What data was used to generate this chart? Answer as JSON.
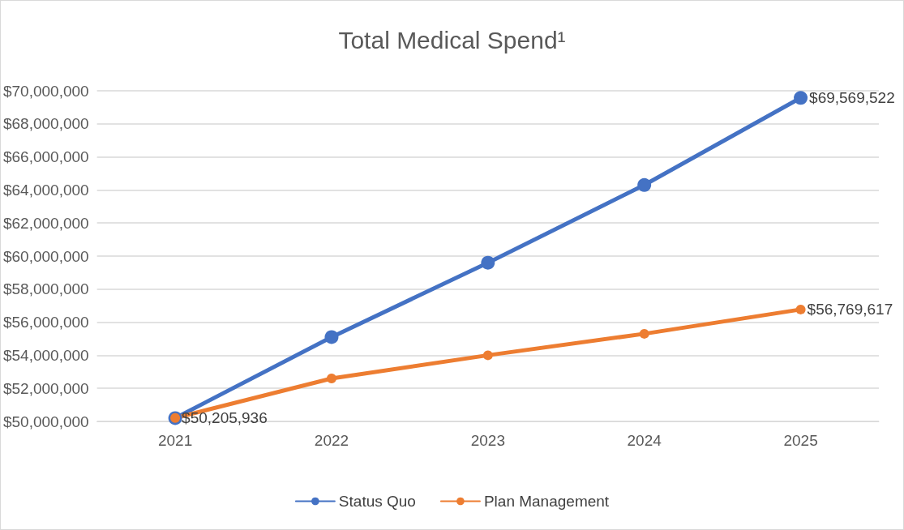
{
  "chart_data": {
    "type": "line",
    "title": "Total Medical Spend¹",
    "categories": [
      "2021",
      "2022",
      "2023",
      "2024",
      "2025"
    ],
    "series": [
      {
        "name": "Status Quo",
        "color": "#4472c4",
        "values": [
          50200000,
          55100000,
          59600000,
          64300000,
          69569522
        ],
        "value_labels": [
          null,
          null,
          null,
          null,
          "$69,569,522"
        ]
      },
      {
        "name": "Plan Management",
        "color": "#ed7d31",
        "values": [
          50205936,
          52600000,
          54000000,
          55300000,
          56769617
        ],
        "value_labels": [
          "$50,205,936",
          null,
          null,
          null,
          "$56,769,617"
        ]
      }
    ],
    "ylim": [
      50000000,
      70000000
    ],
    "yticks": [
      {
        "value": 50000000,
        "label": "$50,000,000"
      },
      {
        "value": 52000000,
        "label": "$52,000,000"
      },
      {
        "value": 54000000,
        "label": "$54,000,000"
      },
      {
        "value": 56000000,
        "label": "$56,000,000"
      },
      {
        "value": 58000000,
        "label": "$58,000,000"
      },
      {
        "value": 60000000,
        "label": "$60,000,000"
      },
      {
        "value": 62000000,
        "label": "$62,000,000"
      },
      {
        "value": 64000000,
        "label": "$64,000,000"
      },
      {
        "value": 66000000,
        "label": "$66,000,000"
      },
      {
        "value": 68000000,
        "label": "$68,000,000"
      },
      {
        "value": 70000000,
        "label": "$70,000,000"
      }
    ],
    "grid": "y",
    "legend": "bottom",
    "marker": "circle",
    "line_style": "solid"
  }
}
